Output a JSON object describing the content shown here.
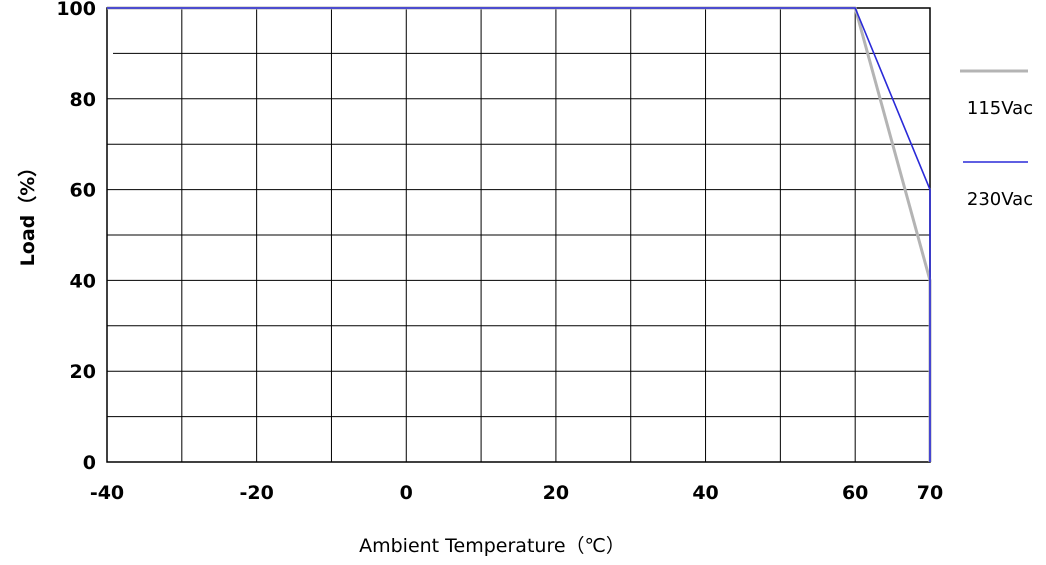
{
  "chart_data": {
    "type": "line",
    "xlabel": "Ambient Temperature（℃）",
    "ylabel": "Load（%）",
    "xlim": [
      -40,
      70
    ],
    "ylim": [
      0,
      100
    ],
    "x_ticks": [
      "-40",
      "-20",
      "0",
      "20",
      "40",
      "60",
      "70"
    ],
    "y_ticks": [
      "0",
      "20",
      "40",
      "60",
      "80",
      "100"
    ],
    "grid": true,
    "legend_position": "right",
    "series": [
      {
        "name": "115Vac",
        "color": "#b4b4b4",
        "points": [
          [
            -40,
            100
          ],
          [
            60,
            100
          ],
          [
            70,
            40
          ],
          [
            70,
            0
          ]
        ]
      },
      {
        "name": "230Vac",
        "color": "#2a2ad8",
        "points": [
          [
            -40,
            100
          ],
          [
            60,
            100
          ],
          [
            70,
            60
          ],
          [
            70,
            0
          ]
        ]
      }
    ]
  }
}
